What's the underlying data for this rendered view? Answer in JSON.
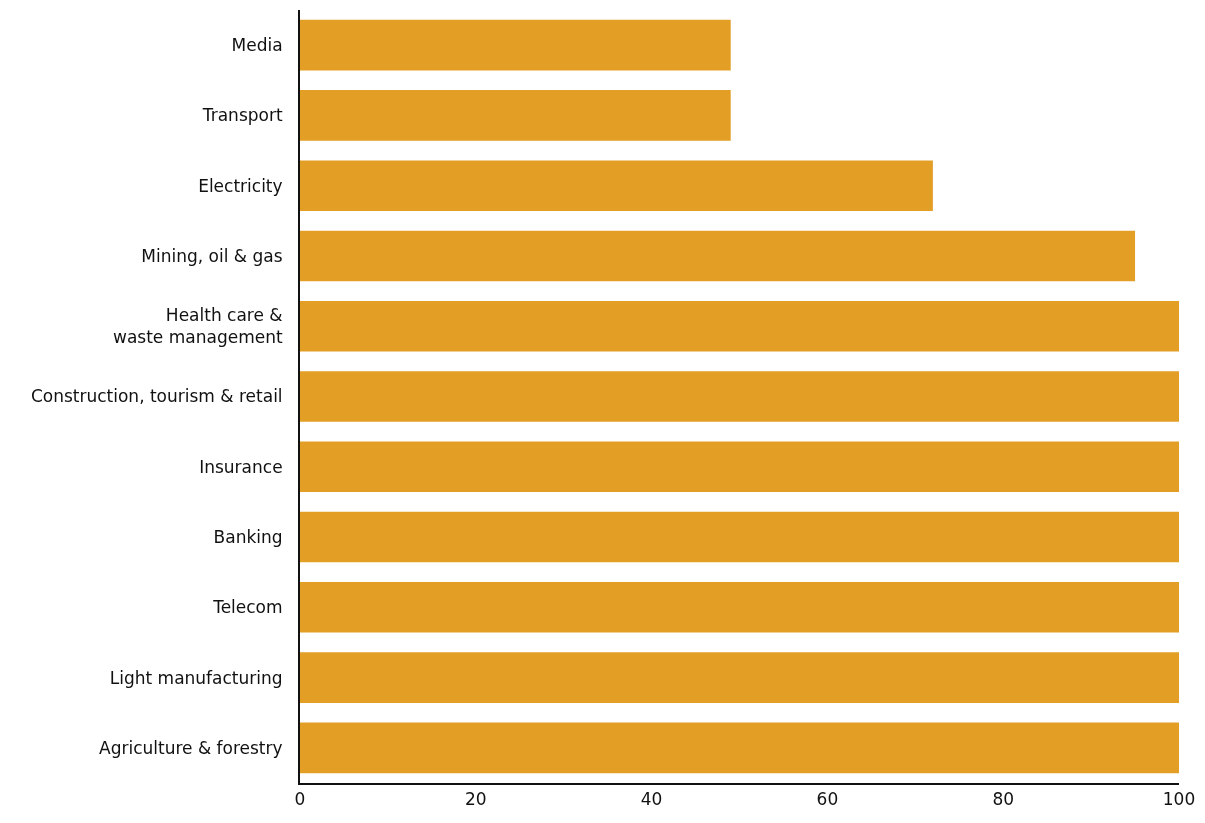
{
  "chart_data": {
    "type": "bar",
    "orientation": "horizontal",
    "categories": [
      "Media",
      "Transport",
      "Electricity",
      "Mining, oil & gas",
      "Health care &\nwaste management",
      "Construction, tourism & retail",
      "Insurance",
      "Banking",
      "Telecom",
      "Light manufacturing",
      "Agriculture & forestry"
    ],
    "values": [
      49,
      49,
      72,
      95,
      100,
      100,
      100,
      100,
      100,
      100,
      100
    ],
    "color": "#e39e25",
    "xlim": [
      0,
      100
    ],
    "xticks": [
      0,
      20,
      40,
      60,
      80,
      100
    ]
  }
}
